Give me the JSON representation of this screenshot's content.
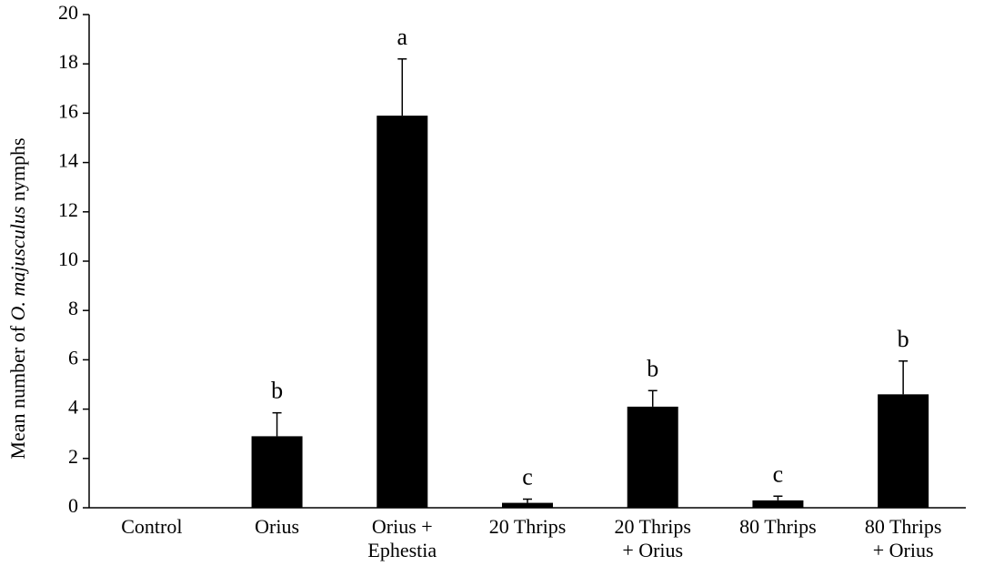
{
  "chart_data": {
    "type": "bar",
    "categories": [
      [
        "Control"
      ],
      [
        "Orius"
      ],
      [
        "Orius +",
        "Ephestia"
      ],
      [
        "20 Thrips"
      ],
      [
        "20 Thrips",
        "+  Orius"
      ],
      [
        "80 Thrips"
      ],
      [
        "80 Thrips",
        "+ Orius"
      ]
    ],
    "values": [
      0,
      2.9,
      15.9,
      0.2,
      4.1,
      0.3,
      4.6
    ],
    "error_upper": [
      0,
      0.95,
      2.3,
      0.15,
      0.65,
      0.17,
      1.35
    ],
    "significance_labels": [
      "",
      "b",
      "a",
      "c",
      "b",
      "c",
      "b"
    ],
    "ylabel": {
      "prefix": "Mean number of ",
      "italic": "O. majusculus",
      "suffix": " nymphs"
    },
    "ylim": [
      0,
      20
    ],
    "y_ticks": [
      0,
      2,
      4,
      6,
      8,
      10,
      12,
      14,
      16,
      18,
      20
    ],
    "grid": false,
    "legend": "none",
    "colors": {
      "bar": "#000000",
      "axis": "#000000"
    }
  }
}
